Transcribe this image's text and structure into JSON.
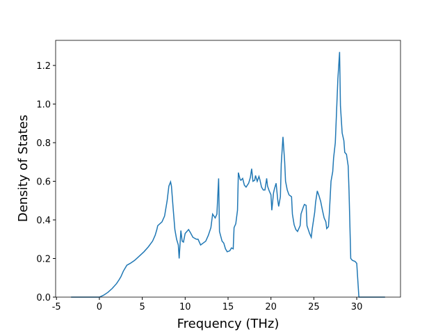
{
  "chart_data": {
    "type": "line",
    "x_label": "Frequency (THz)",
    "y_label": "Density of States",
    "xlim": [
      -5.1,
      35.1
    ],
    "ylim": [
      0,
      1.33
    ],
    "xticks": [
      -5,
      0,
      5,
      10,
      15,
      20,
      25,
      30
    ],
    "yticks": [
      {
        "value": 0,
        "label": "0.0"
      },
      {
        "value": 0.2,
        "label": "0.2"
      },
      {
        "value": 0.4,
        "label": "0.4"
      },
      {
        "value": 0.6,
        "label": "0.6"
      },
      {
        "value": 0.8,
        "label": "0.8"
      },
      {
        "value": 1.0,
        "label": "1.0"
      },
      {
        "value": 1.2,
        "label": "1.2"
      }
    ],
    "series": [
      {
        "color": "#1f77b4",
        "x": [
          -3.3,
          0,
          0.5,
          1,
          1.5,
          2,
          2.3,
          2.5,
          2.8,
          3.0,
          3.2,
          3.6,
          4.1,
          4.6,
          5.2,
          5.7,
          6.2,
          6.5,
          6.7,
          6.8,
          7.3,
          7.6,
          7.9,
          8.1,
          8.3,
          8.4,
          8.6,
          8.8,
          9.0,
          9.2,
          9.3,
          9.5,
          9.65,
          9.8,
          10.0,
          10.4,
          10.6,
          10.9,
          11.3,
          11.5,
          11.8,
          12.1,
          12.4,
          12.7,
          13.0,
          13.2,
          13.5,
          13.7,
          13.9,
          14.0,
          14.3,
          14.5,
          14.7,
          14.9,
          15.2,
          15.4,
          15.6,
          15.7,
          15.9,
          16.1,
          16.2,
          16.4,
          16.5,
          16.7,
          16.9,
          17.1,
          17.4,
          17.6,
          17.75,
          17.9,
          18.1,
          18.2,
          18.4,
          18.6,
          18.7,
          18.9,
          19.1,
          19.3,
          19.5,
          19.6,
          19.8,
          20.0,
          20.1,
          20.3,
          20.4,
          20.6,
          20.8,
          20.9,
          21.1,
          21.2,
          21.4,
          21.6,
          21.7,
          21.9,
          22.1,
          22.4,
          22.5,
          22.7,
          22.9,
          23.1,
          23.4,
          23.5,
          23.8,
          23.9,
          24.1,
          24.2,
          24.5,
          24.7,
          24.8,
          25.1,
          25.2,
          25.4,
          25.6,
          25.8,
          26.0,
          26.2,
          26.4,
          26.5,
          26.7,
          26.8,
          27.0,
          27.2,
          27.3,
          27.5,
          27.6,
          27.8,
          28.0,
          28.1,
          28.3,
          28.5,
          28.6,
          28.8,
          29.0,
          29.1,
          29.3,
          29.5,
          29.8,
          30.0,
          30.25,
          33.3
        ],
        "values": [
          0,
          0,
          0.01,
          0.025,
          0.045,
          0.07,
          0.09,
          0.105,
          0.135,
          0.15,
          0.165,
          0.175,
          0.19,
          0.21,
          0.235,
          0.26,
          0.29,
          0.32,
          0.35,
          0.37,
          0.39,
          0.42,
          0.5,
          0.575,
          0.597,
          0.575,
          0.46,
          0.35,
          0.3,
          0.27,
          0.2,
          0.345,
          0.29,
          0.285,
          0.33,
          0.35,
          0.335,
          0.31,
          0.3,
          0.3,
          0.27,
          0.28,
          0.29,
          0.32,
          0.36,
          0.43,
          0.41,
          0.43,
          0.615,
          0.34,
          0.29,
          0.28,
          0.25,
          0.235,
          0.24,
          0.255,
          0.25,
          0.36,
          0.38,
          0.45,
          0.645,
          0.61,
          0.605,
          0.615,
          0.58,
          0.57,
          0.59,
          0.62,
          0.665,
          0.6,
          0.605,
          0.63,
          0.6,
          0.625,
          0.61,
          0.57,
          0.555,
          0.555,
          0.615,
          0.575,
          0.55,
          0.53,
          0.45,
          0.54,
          0.56,
          0.59,
          0.5,
          0.47,
          0.52,
          0.69,
          0.83,
          0.7,
          0.6,
          0.555,
          0.53,
          0.52,
          0.43,
          0.375,
          0.35,
          0.34,
          0.37,
          0.43,
          0.47,
          0.48,
          0.475,
          0.37,
          0.33,
          0.31,
          0.35,
          0.44,
          0.49,
          0.55,
          0.525,
          0.495,
          0.45,
          0.41,
          0.39,
          0.355,
          0.365,
          0.43,
          0.6,
          0.65,
          0.72,
          0.8,
          0.91,
          1.13,
          1.27,
          0.99,
          0.85,
          0.81,
          0.75,
          0.74,
          0.68,
          0.55,
          0.2,
          0.19,
          0.185,
          0.175,
          0,
          0
        ]
      }
    ]
  }
}
